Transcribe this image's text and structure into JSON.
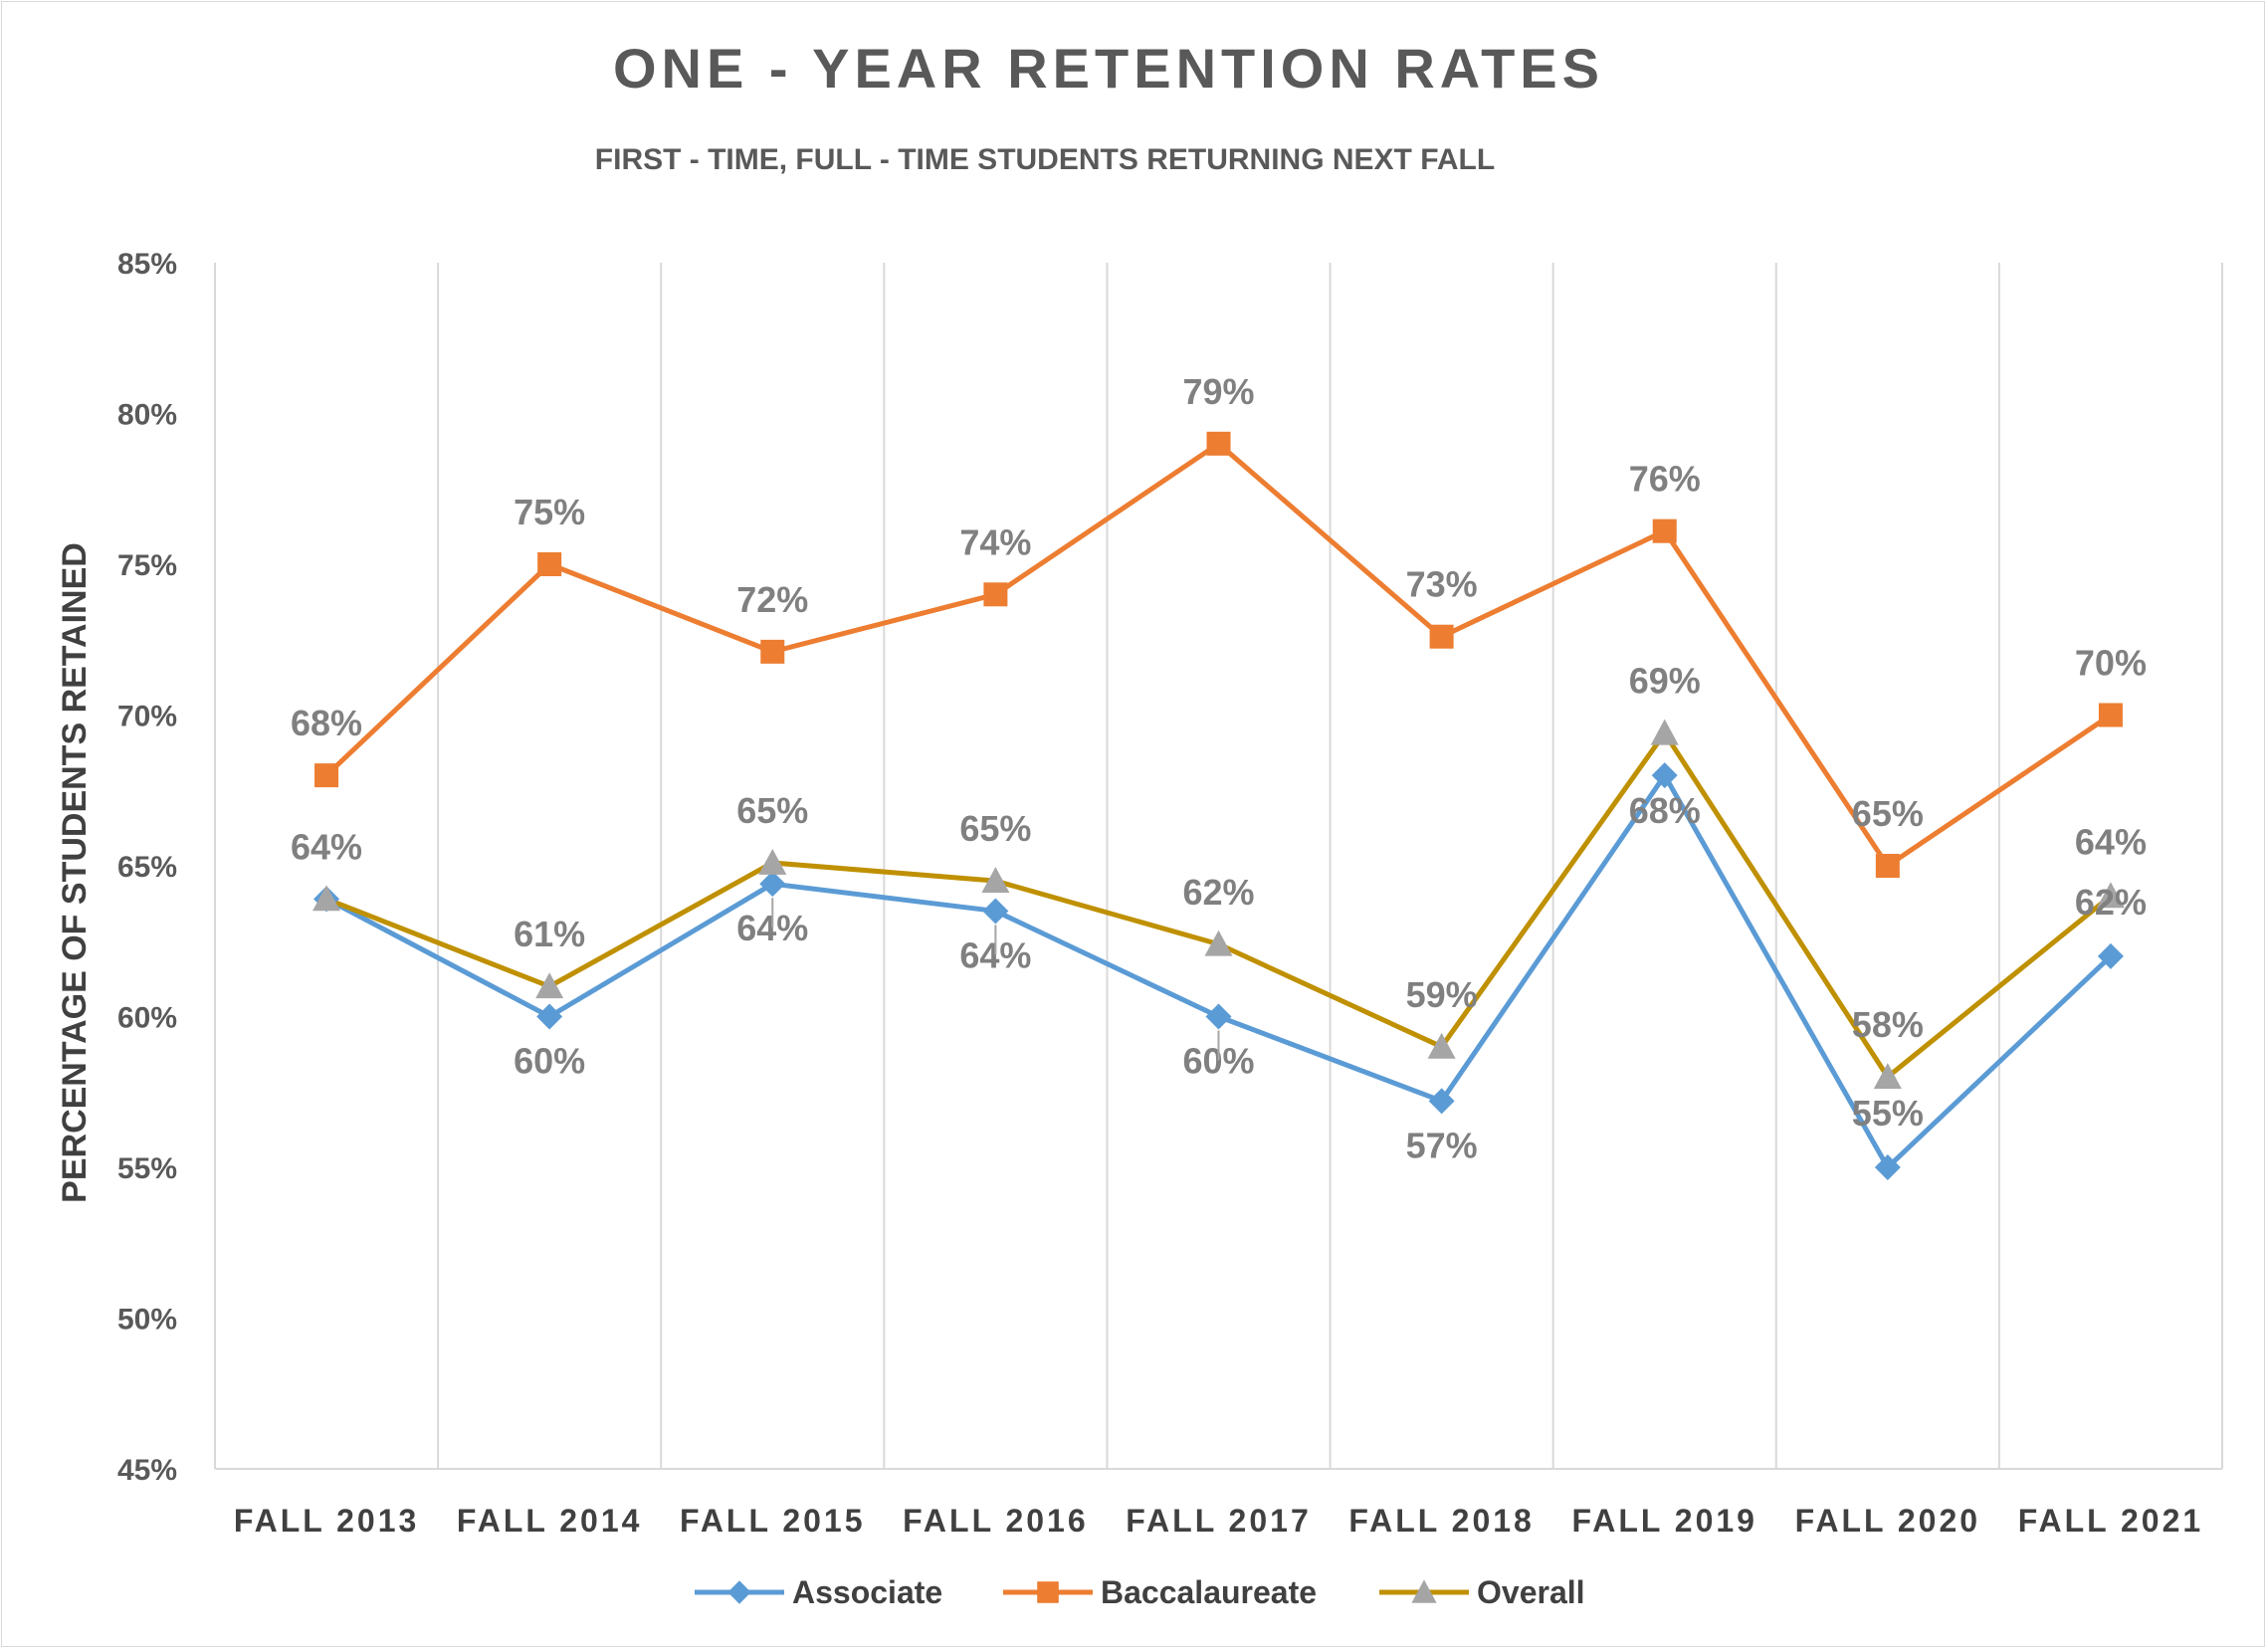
{
  "chart_data": {
    "type": "line",
    "title": "ONE - YEAR RETENTION RATES",
    "subtitle": "FIRST - TIME, FULL - TIME STUDENTS RETURNING NEXT FALL",
    "xlabel": "",
    "ylabel": "PERCENTAGE OF STUDENTS RETAINED",
    "ylim": [
      45,
      85
    ],
    "yticks": [
      "45%",
      "50%",
      "55%",
      "60%",
      "65%",
      "70%",
      "75%",
      "80%",
      "85%"
    ],
    "categories": [
      "FALL 2013",
      "FALL 2014",
      "FALL 2015",
      "FALL 2016",
      "FALL 2017",
      "FALL 2018",
      "FALL 2019",
      "FALL 2020",
      "FALL 2021"
    ],
    "grid": "vertical",
    "legend_position": "bottom",
    "series": [
      {
        "name": "Associate",
        "color": "#5b9bd5",
        "marker": "diamond",
        "values": [
          63.9,
          60.0,
          64.4,
          63.5,
          60.0,
          57.2,
          68.0,
          55.0,
          62.0
        ],
        "labels": [
          "",
          "60%",
          "64%",
          "64%",
          "60%",
          "57%",
          "68%",
          "55%",
          "62%"
        ]
      },
      {
        "name": "Baccalaureate",
        "color": "#ed7d31",
        "marker": "square",
        "values": [
          68.0,
          75.0,
          72.1,
          74.0,
          79.0,
          72.6,
          76.1,
          65.0,
          70.0
        ],
        "labels": [
          "68%",
          "75%",
          "72%",
          "74%",
          "79%",
          "73%",
          "76%",
          "65%",
          "70%"
        ]
      },
      {
        "name": "Overall",
        "color": "#bf9000",
        "marker_color": "#a5a5a5",
        "marker": "triangle",
        "values": [
          63.9,
          61.0,
          65.1,
          64.5,
          62.4,
          59.0,
          69.4,
          58.0,
          64.0
        ],
        "labels": [
          "64%",
          "61%",
          "65%",
          "65%",
          "62%",
          "59%",
          "69%",
          "58%",
          "64%"
        ]
      }
    ]
  }
}
